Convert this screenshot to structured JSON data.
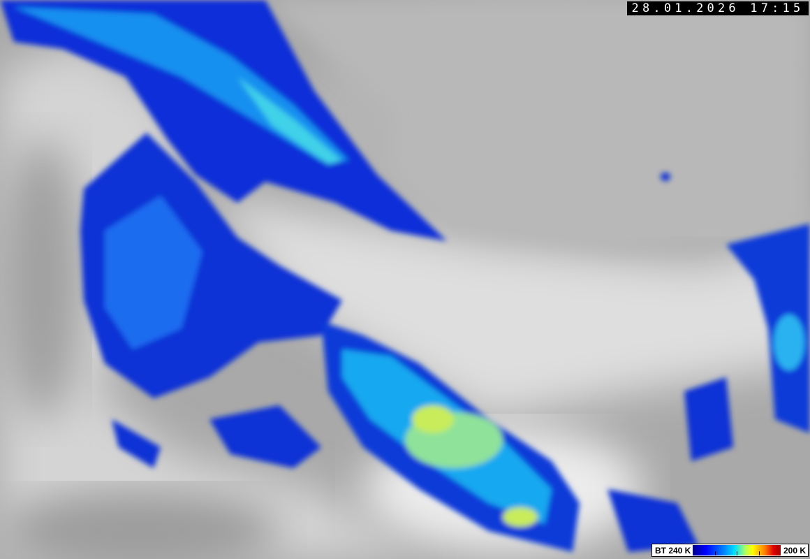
{
  "timestamp": "28.01.2026 17:15",
  "legend": {
    "left_label": "BT 240 K",
    "right_label": "200 K",
    "colors": [
      "#00008c",
      "#0000ff",
      "#0080ff",
      "#00e0ff",
      "#b0ff60",
      "#ffff00",
      "#ff8000",
      "#e00000",
      "#a00000"
    ]
  },
  "image": {
    "type": "infrared satellite imagery",
    "background_palette": "grayscale"
  }
}
